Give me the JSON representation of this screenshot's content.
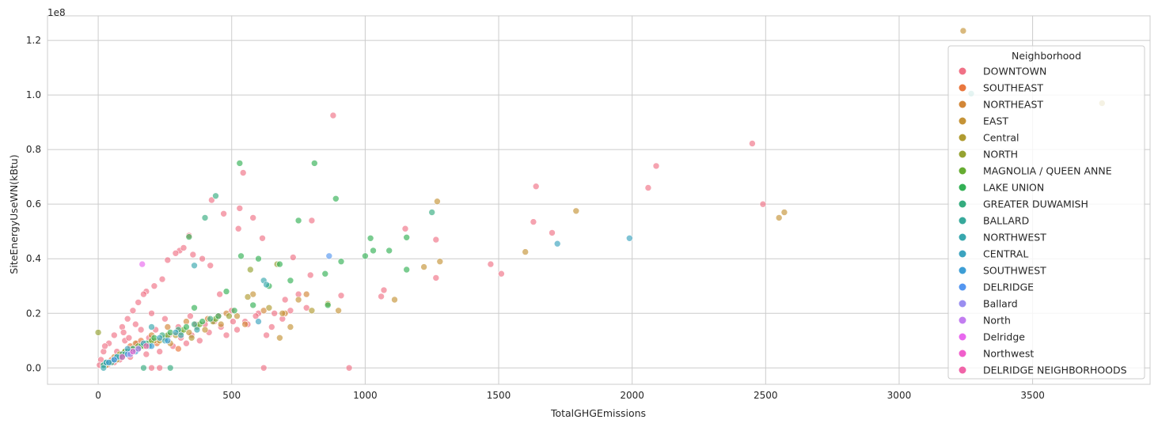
{
  "chart_data": {
    "type": "scatter",
    "title": "",
    "xlabel": "TotalGHGEmissions",
    "ylabel": "SiteEnergyUseWN(kBtu)",
    "y_offset_text": "1e8",
    "xlim": [
      -190,
      3940
    ],
    "ylim": [
      -0.06,
      1.29
    ],
    "x_ticks": [
      0,
      500,
      1000,
      1500,
      2000,
      2500,
      3000,
      3500
    ],
    "x_tick_labels": [
      "0",
      "500",
      "1000",
      "1500",
      "2000",
      "2500",
      "3000",
      "3500"
    ],
    "y_ticks": [
      0,
      0.2,
      0.4,
      0.6,
      0.8,
      1.0,
      1.2
    ],
    "y_tick_labels": [
      "0.0",
      "0.2",
      "0.4",
      "0.6",
      "0.8",
      "1.0",
      "1.2"
    ],
    "grid": true,
    "legend": {
      "title": "Neighborhood",
      "placement": "top-right"
    },
    "series": [
      {
        "name": "DOWNTOWN",
        "color": "#f07186",
        "points": [
          [
            880,
            0.925
          ],
          [
            2450,
            0.822
          ],
          [
            2090,
            0.74
          ],
          [
            543,
            0.715
          ],
          [
            2060,
            0.66
          ],
          [
            1640,
            0.665
          ],
          [
            2490,
            0.6
          ],
          [
            580,
            0.55
          ],
          [
            470,
            0.565
          ],
          [
            425,
            0.615
          ],
          [
            530,
            0.585
          ],
          [
            1630,
            0.535
          ],
          [
            1150,
            0.51
          ],
          [
            1700,
            0.495
          ],
          [
            340,
            0.485
          ],
          [
            615,
            0.475
          ],
          [
            1265,
            0.47
          ],
          [
            525,
            0.51
          ],
          [
            420,
            0.375
          ],
          [
            730,
            0.405
          ],
          [
            1470,
            0.38
          ],
          [
            1510,
            0.345
          ],
          [
            1265,
            0.33
          ],
          [
            1070,
            0.285
          ],
          [
            1060,
            0.262
          ],
          [
            910,
            0.265
          ],
          [
            795,
            0.34
          ],
          [
            800,
            0.54
          ],
          [
            390,
            0.4
          ],
          [
            355,
            0.415
          ],
          [
            260,
            0.395
          ],
          [
            305,
            0.43
          ],
          [
            455,
            0.27
          ],
          [
            180,
            0.28
          ],
          [
            620,
            0.0
          ],
          [
            940,
            0.0
          ],
          [
            230,
            0.0
          ],
          [
            200,
            0.0
          ],
          [
            320,
            0.44
          ],
          [
            290,
            0.42
          ],
          [
            150,
            0.24
          ],
          [
            170,
            0.27
          ],
          [
            240,
            0.325
          ],
          [
            210,
            0.3
          ],
          [
            130,
            0.21
          ],
          [
            110,
            0.18
          ],
          [
            90,
            0.15
          ],
          [
            60,
            0.12
          ],
          [
            40,
            0.09
          ],
          [
            20,
            0.06
          ],
          [
            10,
            0.03
          ],
          [
            5,
            0.01
          ],
          [
            100,
            0.1
          ],
          [
            140,
            0.16
          ],
          [
            160,
            0.14
          ],
          [
            200,
            0.2
          ],
          [
            250,
            0.18
          ],
          [
            300,
            0.15
          ],
          [
            350,
            0.12
          ],
          [
            400,
            0.16
          ],
          [
            450,
            0.19
          ],
          [
            500,
            0.21
          ],
          [
            550,
            0.17
          ],
          [
            600,
            0.2
          ],
          [
            650,
            0.15
          ],
          [
            700,
            0.25
          ],
          [
            750,
            0.27
          ],
          [
            780,
            0.22
          ],
          [
            520,
            0.14
          ],
          [
            480,
            0.12
          ],
          [
            380,
            0.1
          ],
          [
            330,
            0.09
          ],
          [
            280,
            0.08
          ],
          [
            230,
            0.06
          ],
          [
            180,
            0.05
          ],
          [
            120,
            0.04
          ],
          [
            80,
            0.03
          ],
          [
            60,
            0.02
          ],
          [
            35,
            0.01
          ],
          [
            25,
            0.08
          ],
          [
            70,
            0.06
          ],
          [
            95,
            0.13
          ],
          [
            115,
            0.11
          ],
          [
            125,
            0.07
          ],
          [
            145,
            0.09
          ],
          [
            190,
            0.11
          ],
          [
            215,
            0.14
          ],
          [
            265,
            0.12
          ],
          [
            310,
            0.11
          ],
          [
            345,
            0.19
          ],
          [
            365,
            0.16
          ],
          [
            415,
            0.13
          ],
          [
            435,
            0.17
          ],
          [
            460,
            0.15
          ],
          [
            505,
            0.17
          ],
          [
            560,
            0.16
          ],
          [
            590,
            0.19
          ],
          [
            630,
            0.12
          ],
          [
            660,
            0.2
          ],
          [
            690,
            0.18
          ],
          [
            720,
            0.21
          ]
        ]
      },
      {
        "name": "SOUTHEAST",
        "color": "#e9773e",
        "points": [
          [
            50,
            0.03
          ],
          [
            85,
            0.05
          ],
          [
            120,
            0.08
          ],
          [
            160,
            0.1
          ],
          [
            220,
            0.09
          ],
          [
            300,
            0.07
          ]
        ]
      },
      {
        "name": "NORTHEAST",
        "color": "#d28637",
        "points": [
          [
            60,
            0.04
          ],
          [
            100,
            0.06
          ],
          [
            140,
            0.09
          ],
          [
            200,
            0.12
          ],
          [
            260,
            0.15
          ],
          [
            330,
            0.17
          ],
          [
            410,
            0.18
          ],
          [
            480,
            0.2
          ],
          [
            620,
            0.21
          ],
          [
            700,
            0.2
          ],
          [
            780,
            0.27
          ],
          [
            550,
            0.16
          ]
        ]
      },
      {
        "name": "EAST",
        "color": "#c59337",
        "points": [
          [
            3240,
            1.235
          ],
          [
            1270,
            0.61
          ],
          [
            1790,
            0.575
          ],
          [
            2570,
            0.57
          ],
          [
            2550,
            0.55
          ],
          [
            1280,
            0.39
          ],
          [
            1220,
            0.37
          ],
          [
            1600,
            0.425
          ],
          [
            1110,
            0.25
          ],
          [
            690,
            0.2
          ],
          [
            720,
            0.15
          ],
          [
            680,
            0.11
          ],
          [
            580,
            0.27
          ],
          [
            750,
            0.25
          ],
          [
            900,
            0.21
          ],
          [
            40,
            0.02
          ],
          [
            90,
            0.05
          ],
          [
            150,
            0.07
          ],
          [
            210,
            0.1
          ],
          [
            270,
            0.09
          ],
          [
            340,
            0.13
          ],
          [
            400,
            0.14
          ],
          [
            460,
            0.16
          ],
          [
            520,
            0.19
          ]
        ]
      },
      {
        "name": "Central",
        "color": "#b09b31",
        "points": [
          [
            3760,
            0.97
          ],
          [
            800,
            0.21
          ],
          [
            860,
            0.235
          ],
          [
            560,
            0.26
          ],
          [
            640,
            0.22
          ],
          [
            30,
            0.01
          ],
          [
            70,
            0.03
          ],
          [
            110,
            0.06
          ],
          [
            170,
            0.08
          ],
          [
            230,
            0.1
          ],
          [
            290,
            0.12
          ],
          [
            350,
            0.11
          ]
        ]
      },
      {
        "name": "NORTH",
        "color": "#95a231",
        "points": [
          [
            0,
            0.13
          ],
          [
            670,
            0.38
          ],
          [
            570,
            0.36
          ],
          [
            40,
            0.02
          ],
          [
            80,
            0.05
          ],
          [
            130,
            0.07
          ],
          [
            190,
            0.09
          ],
          [
            250,
            0.11
          ],
          [
            310,
            0.13
          ],
          [
            370,
            0.15
          ],
          [
            430,
            0.17
          ],
          [
            490,
            0.19
          ]
        ]
      },
      {
        "name": "MAGNOLIA / QUEEN ANNE",
        "color": "#66ac31",
        "points": [
          [
            20,
            0.01
          ],
          [
            60,
            0.03
          ],
          [
            100,
            0.06
          ],
          [
            150,
            0.08
          ],
          [
            200,
            0.1
          ],
          [
            260,
            0.12
          ],
          [
            320,
            0.14
          ],
          [
            380,
            0.16
          ],
          [
            440,
            0.18
          ]
        ]
      },
      {
        "name": "LAKE UNION",
        "color": "#33b055",
        "points": [
          [
            530,
            0.75
          ],
          [
            810,
            0.75
          ],
          [
            890,
            0.62
          ],
          [
            750,
            0.54
          ],
          [
            1020,
            0.475
          ],
          [
            1155,
            0.478
          ],
          [
            1090,
            0.43
          ],
          [
            1030,
            0.43
          ],
          [
            1000,
            0.41
          ],
          [
            910,
            0.39
          ],
          [
            850,
            0.345
          ],
          [
            720,
            0.32
          ],
          [
            640,
            0.3
          ],
          [
            600,
            0.4
          ],
          [
            535,
            0.41
          ],
          [
            680,
            0.38
          ],
          [
            480,
            0.28
          ],
          [
            360,
            0.22
          ],
          [
            340,
            0.48
          ],
          [
            1155,
            0.36
          ],
          [
            860,
            0.23
          ],
          [
            30,
            0.02
          ],
          [
            70,
            0.04
          ],
          [
            110,
            0.06
          ],
          [
            160,
            0.08
          ],
          [
            210,
            0.11
          ],
          [
            270,
            0.13
          ],
          [
            330,
            0.15
          ],
          [
            390,
            0.17
          ],
          [
            450,
            0.19
          ],
          [
            510,
            0.21
          ],
          [
            580,
            0.23
          ]
        ]
      },
      {
        "name": "GREATER DUWAMISH",
        "color": "#35ac7f",
        "points": [
          [
            440,
            0.63
          ],
          [
            400,
            0.55
          ],
          [
            1250,
            0.57
          ],
          [
            270,
            0.0
          ],
          [
            170,
            0.0
          ],
          [
            50,
            0.02
          ],
          [
            90,
            0.05
          ],
          [
            130,
            0.07
          ],
          [
            180,
            0.09
          ],
          [
            240,
            0.12
          ],
          [
            300,
            0.14
          ],
          [
            360,
            0.16
          ],
          [
            420,
            0.18
          ]
        ]
      },
      {
        "name": "BALLARD",
        "color": "#37a99b",
        "points": [
          [
            3270,
            1.005
          ],
          [
            20,
            0.01
          ],
          [
            60,
            0.03
          ],
          [
            100,
            0.05
          ],
          [
            150,
            0.07
          ]
        ]
      },
      {
        "name": "NORTHWEST",
        "color": "#38a7ae",
        "points": [
          [
            620,
            0.32
          ],
          [
            630,
            0.305
          ],
          [
            360,
            0.375
          ],
          [
            200,
            0.15
          ],
          [
            20,
            0.0
          ],
          [
            80,
            0.04
          ],
          [
            120,
            0.06
          ],
          [
            190,
            0.08
          ],
          [
            250,
            0.1
          ],
          [
            310,
            0.12
          ],
          [
            370,
            0.14
          ]
        ]
      },
      {
        "name": "CENTRAL",
        "color": "#3ba3bf",
        "points": [
          [
            1720,
            0.455
          ],
          [
            1990,
            0.475
          ],
          [
            600,
            0.17
          ],
          [
            30,
            0.02
          ],
          [
            70,
            0.04
          ],
          [
            110,
            0.07
          ],
          [
            170,
            0.09
          ],
          [
            230,
            0.11
          ],
          [
            290,
            0.13
          ]
        ]
      },
      {
        "name": "SOUTHWEST",
        "color": "#3d9ed5",
        "points": [
          [
            40,
            0.02
          ],
          [
            90,
            0.04
          ],
          [
            140,
            0.06
          ],
          [
            200,
            0.08
          ],
          [
            260,
            0.1
          ]
        ]
      },
      {
        "name": "DELRIDGE",
        "color": "#5496f0",
        "points": [
          [
            865,
            0.41
          ],
          [
            60,
            0.03
          ],
          [
            110,
            0.05
          ]
        ]
      },
      {
        "name": "Ballard",
        "color": "#9a8ef0",
        "points": [
          [
            120,
            0.05
          ]
        ]
      },
      {
        "name": "North",
        "color": "#c27df0",
        "points": [
          [
            150,
            0.07
          ]
        ]
      },
      {
        "name": "Delridge",
        "color": "#e868ee",
        "points": [
          [
            165,
            0.38
          ]
        ]
      },
      {
        "name": "Northwest",
        "color": "#f05fcb",
        "points": [
          [
            130,
            0.06
          ]
        ]
      },
      {
        "name": "DELRIDGE NEIGHBORHOODS",
        "color": "#f064a8",
        "points": [
          [
            90,
            0.04
          ],
          [
            180,
            0.08
          ]
        ]
      }
    ]
  }
}
